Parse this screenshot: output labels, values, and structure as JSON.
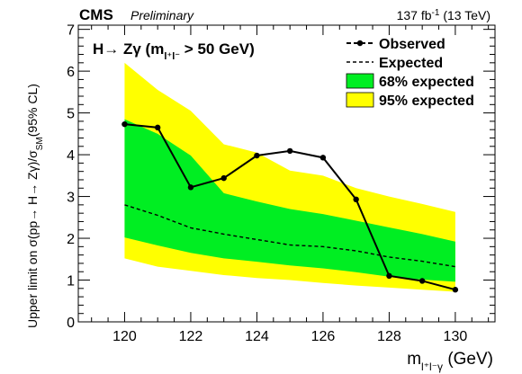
{
  "header": {
    "experiment": "CMS",
    "status": "Preliminary",
    "lumi": "137",
    "lumi_unit": "fb",
    "lumi_exp": "-1",
    "energy": "(13 TeV)"
  },
  "chart_data": {
    "type": "line",
    "title": "H→ Zγ (m_{l+l-} > 50 GeV)",
    "title_parts": {
      "main": "H→ Zγ (m",
      "sub": "l⁺l⁻",
      "tail": " > 50 GeV)"
    },
    "xlabel": "m_{l+l-γ} (GeV)",
    "xlabel_parts": {
      "main": "m",
      "sub": "l⁺l⁻γ",
      "tail": " (GeV)"
    },
    "ylabel": "Upper limit on σ(pp→ H→ Zγ)/σ_SM (95% CL)",
    "ylabel_parts": {
      "main": "Upper limit on σ(pp→ H→ Zγ)/σ",
      "sub": "SM",
      "tail": "(95%  CL)"
    },
    "xlim": [
      118.6,
      131.2
    ],
    "ylim": [
      0,
      7.1
    ],
    "xticks": [
      120,
      122,
      124,
      126,
      128,
      130
    ],
    "yticks": [
      0,
      1,
      2,
      3,
      4,
      5,
      6,
      7
    ],
    "legend_position": "top-right",
    "legend": [
      {
        "label": "Observed",
        "style": "line-marker"
      },
      {
        "label": "Expected",
        "style": "dashed"
      },
      {
        "label": "68% expected",
        "style": "band",
        "color": "#00ee22"
      },
      {
        "label": "95% expected",
        "style": "band",
        "color": "#ffff00"
      }
    ],
    "series": [
      {
        "name": "Observed",
        "x": [
          120,
          121,
          122,
          123,
          124,
          125,
          126,
          127,
          128,
          129,
          130
        ],
        "y": [
          4.73,
          4.65,
          3.22,
          3.44,
          3.98,
          4.09,
          3.93,
          2.93,
          1.1,
          0.98,
          0.77
        ]
      },
      {
        "name": "Expected",
        "x": [
          120,
          121,
          122,
          123,
          124,
          125,
          126,
          127,
          128,
          129,
          130
        ],
        "y": [
          2.8,
          2.55,
          2.25,
          2.1,
          1.97,
          1.84,
          1.8,
          1.7,
          1.55,
          1.45,
          1.32
        ]
      }
    ],
    "bands": [
      {
        "name": "95% expected",
        "color": "#ffff00",
        "x": [
          120,
          121,
          122,
          123,
          124,
          125,
          126,
          127,
          128,
          129,
          130
        ],
        "low": [
          1.52,
          1.32,
          1.22,
          1.12,
          1.05,
          1.0,
          0.93,
          0.87,
          0.82,
          0.77,
          0.72
        ],
        "high": [
          6.2,
          5.55,
          5.05,
          4.25,
          4.05,
          3.62,
          3.5,
          3.2,
          3.0,
          2.82,
          2.63
        ]
      },
      {
        "name": "68% expected",
        "color": "#00ee22",
        "x": [
          120,
          121,
          122,
          123,
          124,
          125,
          126,
          127,
          128,
          129,
          130
        ],
        "low": [
          2.02,
          1.83,
          1.65,
          1.52,
          1.44,
          1.35,
          1.28,
          1.19,
          1.08,
          1.01,
          0.96
        ],
        "high": [
          4.85,
          4.5,
          3.98,
          3.08,
          2.88,
          2.7,
          2.58,
          2.42,
          2.26,
          2.1,
          1.92
        ]
      }
    ]
  }
}
